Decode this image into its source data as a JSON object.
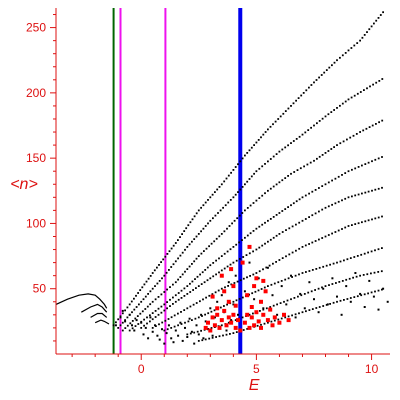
{
  "chart_data": {
    "type": "scatter",
    "title": "",
    "xlabel": "E",
    "ylabel": "<n>",
    "xlim": [
      -3.7,
      10.8
    ],
    "ylim": [
      0,
      265
    ],
    "x_ticks": [
      0,
      5,
      10
    ],
    "x_tick_labels": [
      "0",
      "5",
      "10"
    ],
    "y_ticks": [
      50,
      100,
      150,
      200,
      250
    ],
    "y_tick_labels": [
      "50",
      "100",
      "150",
      "200",
      "250"
    ],
    "grid": false,
    "legend": "none",
    "colors": {
      "axis": "#dd1111",
      "points": "#000000",
      "highlight_points": "#ff0000",
      "vline_green": "#006600",
      "vline_magenta": "#ee11ee",
      "vline_blue": "#0000ee"
    },
    "vertical_lines": [
      {
        "x": -1.2,
        "color": "#006600",
        "width": 2
      },
      {
        "x": -0.9,
        "color": "#ee11ee",
        "width": 2
      },
      {
        "x": 1.05,
        "color": "#ee11ee",
        "width": 2
      },
      {
        "x": 4.3,
        "color": "#0000ee",
        "width": 4
      }
    ],
    "series": [
      {
        "style": "dotted",
        "color": "#000000",
        "points": [
          [
            -1.2,
            22
          ],
          [
            -0.5,
            38
          ],
          [
            0.5,
            62
          ],
          [
            1.5,
            85
          ],
          [
            2.5,
            110
          ],
          [
            3.5,
            130
          ],
          [
            4.5,
            152
          ],
          [
            5.5,
            172
          ],
          [
            6.5,
            190
          ],
          [
            7.5,
            208
          ],
          [
            8.5,
            225
          ],
          [
            9.5,
            240
          ],
          [
            10.6,
            264
          ]
        ]
      },
      {
        "style": "dotted",
        "color": "#000000",
        "points": [
          [
            -1.0,
            20
          ],
          [
            0,
            40
          ],
          [
            1,
            60
          ],
          [
            2,
            82
          ],
          [
            3,
            102
          ],
          [
            4,
            120
          ],
          [
            5,
            140
          ],
          [
            6,
            155
          ],
          [
            7,
            168
          ],
          [
            8,
            182
          ],
          [
            9,
            195
          ],
          [
            10.6,
            212
          ]
        ]
      },
      {
        "style": "dotted",
        "color": "#000000",
        "points": [
          [
            -0.8,
            18
          ],
          [
            0.5,
            40
          ],
          [
            1.5,
            55
          ],
          [
            2.5,
            75
          ],
          [
            3.5,
            92
          ],
          [
            4.5,
            110
          ],
          [
            5.5,
            125
          ],
          [
            6.5,
            138
          ],
          [
            7.5,
            148
          ],
          [
            8.5,
            160
          ],
          [
            9.5,
            170
          ],
          [
            10.6,
            180
          ]
        ]
      },
      {
        "style": "dotted",
        "color": "#000000",
        "points": [
          [
            -0.5,
            18
          ],
          [
            1,
            38
          ],
          [
            2,
            52
          ],
          [
            3,
            68
          ],
          [
            4,
            82
          ],
          [
            5,
            96
          ],
          [
            6,
            108
          ],
          [
            7,
            120
          ],
          [
            8,
            130
          ],
          [
            9,
            140
          ],
          [
            10.6,
            152
          ]
        ]
      },
      {
        "style": "dotted",
        "color": "#000000",
        "points": [
          [
            0,
            20
          ],
          [
            1.5,
            40
          ],
          [
            3,
            58
          ],
          [
            4,
            70
          ],
          [
            5,
            80
          ],
          [
            6,
            92
          ],
          [
            7,
            102
          ],
          [
            8,
            112
          ],
          [
            9,
            120
          ],
          [
            10.6,
            128
          ]
        ]
      },
      {
        "style": "dotted",
        "color": "#000000",
        "points": [
          [
            0.5,
            20
          ],
          [
            2,
            35
          ],
          [
            3.5,
            50
          ],
          [
            5,
            62
          ],
          [
            6,
            72
          ],
          [
            7,
            82
          ],
          [
            8,
            90
          ],
          [
            9,
            98
          ],
          [
            10.6,
            106
          ]
        ]
      },
      {
        "style": "dotted",
        "color": "#000000",
        "points": [
          [
            1,
            18
          ],
          [
            2.5,
            28
          ],
          [
            4,
            40
          ],
          [
            5.5,
            52
          ],
          [
            7,
            62
          ],
          [
            8.5,
            70
          ],
          [
            10.6,
            82
          ]
        ]
      },
      {
        "style": "dotted",
        "color": "#000000",
        "points": [
          [
            2,
            15
          ],
          [
            3.5,
            22
          ],
          [
            5,
            32
          ],
          [
            6.5,
            42
          ],
          [
            8,
            52
          ],
          [
            9.5,
            60
          ],
          [
            10.6,
            64
          ]
        ]
      },
      {
        "style": "dotted",
        "color": "#000000",
        "points": [
          [
            2.5,
            10
          ],
          [
            4,
            16
          ],
          [
            5.5,
            24
          ],
          [
            7,
            32
          ],
          [
            8.5,
            40
          ],
          [
            10.6,
            50
          ]
        ]
      },
      {
        "style": "solid",
        "color": "#000000",
        "points": [
          [
            -3.7,
            38
          ],
          [
            -3.2,
            42
          ],
          [
            -2.7,
            45
          ],
          [
            -2.3,
            46
          ],
          [
            -2.0,
            45
          ],
          [
            -1.8,
            42
          ],
          [
            -1.6,
            38
          ],
          [
            -1.5,
            35
          ]
        ]
      },
      {
        "style": "solid",
        "color": "#000000",
        "points": [
          [
            -2.6,
            32
          ],
          [
            -2.2,
            36
          ],
          [
            -1.9,
            38
          ],
          [
            -1.7,
            36
          ],
          [
            -1.5,
            32
          ]
        ]
      },
      {
        "style": "solid",
        "color": "#000000",
        "points": [
          [
            -2.2,
            28
          ],
          [
            -1.9,
            31
          ],
          [
            -1.7,
            31
          ],
          [
            -1.5,
            28
          ]
        ]
      },
      {
        "style": "solid",
        "color": "#000000",
        "points": [
          [
            -2.0,
            24
          ],
          [
            -1.75,
            26
          ],
          [
            -1.6,
            25
          ],
          [
            -1.4,
            23
          ]
        ]
      }
    ],
    "scatter_series": [
      {
        "name": "",
        "color": "#000000",
        "points": [
          [
            -1.1,
            22
          ],
          [
            -0.9,
            28
          ],
          [
            -0.8,
            33
          ],
          [
            -0.7,
            25
          ],
          [
            -0.5,
            30
          ],
          [
            -0.4,
            22
          ],
          [
            -0.3,
            18
          ],
          [
            -0.2,
            26
          ],
          [
            0,
            24
          ],
          [
            0.1,
            15
          ],
          [
            0.2,
            20
          ],
          [
            0.3,
            12
          ],
          [
            0.4,
            28
          ],
          [
            0.5,
            17
          ],
          [
            0.6,
            22
          ],
          [
            0.7,
            14
          ],
          [
            0.8,
            11
          ],
          [
            0.9,
            19
          ],
          [
            1.0,
            8
          ],
          [
            1.1,
            16
          ],
          [
            1.2,
            22
          ],
          [
            1.3,
            12
          ],
          [
            1.4,
            9
          ],
          [
            1.5,
            18
          ],
          [
            1.6,
            14
          ],
          [
            1.7,
            24
          ],
          [
            1.8,
            10
          ],
          [
            1.9,
            20
          ],
          [
            2.0,
            13
          ],
          [
            2.1,
            27
          ],
          [
            2.2,
            17
          ],
          [
            2.3,
            8
          ],
          [
            2.4,
            22
          ],
          [
            2.5,
            15
          ],
          [
            2.6,
            30
          ],
          [
            2.7,
            12
          ],
          [
            2.8,
            25
          ],
          [
            2.9,
            19
          ],
          [
            3.0,
            35
          ],
          [
            3.1,
            14
          ],
          [
            3.2,
            28
          ],
          [
            3.3,
            40
          ],
          [
            3.4,
            21
          ],
          [
            3.5,
            45
          ],
          [
            3.6,
            32
          ],
          [
            3.7,
            18
          ],
          [
            3.8,
            55
          ],
          [
            3.9,
            26
          ],
          [
            4.0,
            38
          ],
          [
            4.1,
            60
          ],
          [
            4.2,
            30
          ],
          [
            4.5,
            48
          ],
          [
            4.7,
            70
          ],
          [
            4.9,
            42
          ],
          [
            5.1,
            58
          ],
          [
            5.3,
            35
          ],
          [
            5.5,
            66
          ],
          [
            5.7,
            45
          ],
          [
            5.9,
            30
          ],
          [
            6.1,
            52
          ],
          [
            6.3,
            38
          ],
          [
            6.5,
            60
          ],
          [
            6.7,
            28
          ],
          [
            6.9,
            46
          ],
          [
            7.1,
            35
          ],
          [
            7.3,
            55
          ],
          [
            7.5,
            42
          ],
          [
            7.7,
            32
          ],
          [
            7.9,
            50
          ],
          [
            8.1,
            38
          ],
          [
            8.3,
            58
          ],
          [
            8.5,
            44
          ],
          [
            8.7,
            30
          ],
          [
            8.9,
            52
          ],
          [
            9.1,
            40
          ],
          [
            9.3,
            62
          ],
          [
            9.5,
            46
          ],
          [
            9.7,
            36
          ],
          [
            9.9,
            56
          ],
          [
            10.1,
            44
          ],
          [
            10.3,
            34
          ],
          [
            10.5,
            50
          ],
          [
            10.7,
            40
          ]
        ]
      },
      {
        "name": "",
        "color": "#ff0000",
        "points": [
          [
            2.8,
            20
          ],
          [
            2.9,
            24
          ],
          [
            3.0,
            18
          ],
          [
            3.1,
            28
          ],
          [
            3.2,
            22
          ],
          [
            3.3,
            35
          ],
          [
            3.3,
            30
          ],
          [
            3.4,
            20
          ],
          [
            3.5,
            26
          ],
          [
            3.6,
            48
          ],
          [
            3.6,
            33
          ],
          [
            3.7,
            22
          ],
          [
            3.8,
            40
          ],
          [
            3.8,
            28
          ],
          [
            3.9,
            24
          ],
          [
            4.0,
            30
          ],
          [
            4.0,
            52
          ],
          [
            4.1,
            20
          ],
          [
            4.1,
            37
          ],
          [
            4.2,
            26
          ],
          [
            4.3,
            18
          ],
          [
            4.5,
            24
          ],
          [
            4.6,
            30
          ],
          [
            4.6,
            45
          ],
          [
            4.7,
            20
          ],
          [
            4.8,
            36
          ],
          [
            4.8,
            28
          ],
          [
            4.9,
            22
          ],
          [
            5.0,
            58
          ],
          [
            5.0,
            32
          ],
          [
            5.1,
            25
          ],
          [
            5.2,
            40
          ],
          [
            5.2,
            20
          ],
          [
            5.3,
            30
          ],
          [
            5.4,
            48
          ],
          [
            5.5,
            26
          ],
          [
            5.6,
            34
          ],
          [
            5.7,
            22
          ],
          [
            5.8,
            28
          ],
          [
            6.0,
            24
          ],
          [
            6.2,
            30
          ],
          [
            6.4,
            26
          ],
          [
            3.5,
            60
          ],
          [
            4.7,
            82
          ],
          [
            4.9,
            52
          ],
          [
            5.3,
            56
          ],
          [
            3.1,
            44
          ],
          [
            4.4,
            70
          ],
          [
            3.9,
            65
          ]
        ]
      }
    ]
  }
}
